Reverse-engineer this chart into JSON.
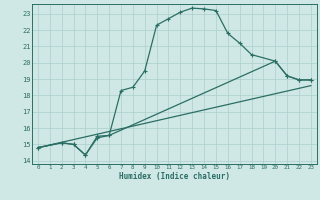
{
  "line1_x": [
    0,
    2,
    3,
    4,
    5,
    6,
    7,
    8,
    9,
    10,
    11,
    12,
    13,
    14,
    15,
    16,
    17,
    18,
    20,
    21,
    22,
    23
  ],
  "line1_y": [
    14.8,
    15.1,
    15.0,
    14.35,
    15.5,
    15.55,
    18.3,
    18.5,
    19.5,
    22.3,
    22.7,
    23.1,
    23.35,
    23.3,
    23.2,
    21.8,
    21.2,
    20.5,
    20.1,
    19.2,
    18.95,
    18.95
  ],
  "line2_x": [
    0,
    2,
    3,
    4,
    5,
    6,
    20,
    21,
    22,
    23
  ],
  "line2_y": [
    14.8,
    15.1,
    15.0,
    14.35,
    15.4,
    15.55,
    20.1,
    19.2,
    18.95,
    18.95
  ],
  "line3_x": [
    0,
    23
  ],
  "line3_y": [
    14.8,
    18.6
  ],
  "bg_color": "#cfe8e5",
  "line_color": "#2b6e64",
  "grid_color": "#aacfcc",
  "xlim": [
    -0.5,
    23.5
  ],
  "ylim": [
    13.8,
    23.6
  ],
  "yticks": [
    14,
    15,
    16,
    17,
    18,
    19,
    20,
    21,
    22,
    23
  ],
  "xticks": [
    0,
    1,
    2,
    3,
    4,
    5,
    6,
    7,
    8,
    9,
    10,
    11,
    12,
    13,
    14,
    15,
    16,
    17,
    18,
    19,
    20,
    21,
    22,
    23
  ],
  "xlabel": "Humidex (Indice chaleur)"
}
